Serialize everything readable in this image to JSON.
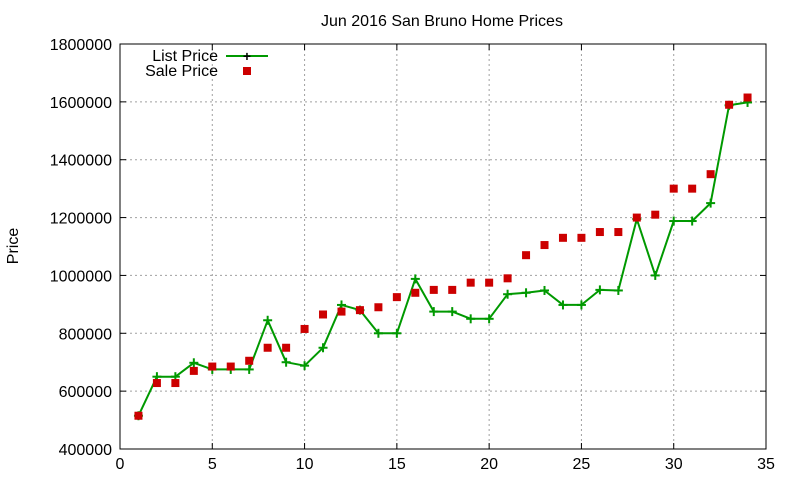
{
  "chart_data": {
    "type": "line",
    "title": "Jun 2016 San Bruno Home Prices",
    "xlabel": "",
    "ylabel": "Price",
    "xlim": [
      0,
      35
    ],
    "ylim": [
      400000,
      1800000
    ],
    "x_ticks": [
      "0",
      "5",
      "10",
      "15",
      "20",
      "25",
      "30",
      "35"
    ],
    "y_ticks": [
      "400000",
      "600000",
      "800000",
      "1000000",
      "1200000",
      "1400000",
      "1600000",
      "1800000"
    ],
    "grid": true,
    "legend_position": "top-left",
    "x": [
      1,
      2,
      3,
      4,
      5,
      6,
      7,
      8,
      9,
      10,
      11,
      12,
      13,
      14,
      15,
      16,
      17,
      18,
      19,
      20,
      21,
      22,
      23,
      24,
      25,
      26,
      27,
      28,
      29,
      30,
      31,
      32,
      33,
      34
    ],
    "series": [
      {
        "name": "List Price",
        "style": "line+plus",
        "color": "#009900",
        "values": [
          515000,
          650000,
          650000,
          698000,
          675000,
          675000,
          675000,
          845000,
          700000,
          688000,
          750000,
          898000,
          880000,
          800000,
          800000,
          988000,
          875000,
          875000,
          850000,
          850000,
          935000,
          940000,
          948000,
          898000,
          898000,
          950000,
          948000,
          1195000,
          1000000,
          1188000,
          1188000,
          1250000,
          1588000,
          1598000
        ]
      },
      {
        "name": "Sale Price",
        "style": "square",
        "color": "#cc0000",
        "values": [
          515000,
          628000,
          628000,
          670000,
          685000,
          685000,
          705000,
          750000,
          750000,
          815000,
          865000,
          875000,
          880000,
          890000,
          925000,
          940000,
          950000,
          950000,
          975000,
          975000,
          990000,
          1070000,
          1105000,
          1130000,
          1130000,
          1150000,
          1150000,
          1200000,
          1210000,
          1300000,
          1300000,
          1350000,
          1590000,
          1615000
        ]
      }
    ]
  }
}
